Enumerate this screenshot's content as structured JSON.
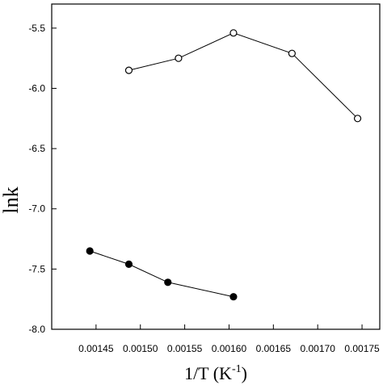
{
  "chart_data": {
    "type": "scatter",
    "title": "",
    "xlabel": "1/T (K-1)",
    "xlabel_parts": {
      "base": "1/T (K",
      "sup": "-1",
      "close": ")"
    },
    "ylabel": "lnk",
    "xlim": [
      0.0014,
      0.00177
    ],
    "ylim": [
      -8.0,
      -5.3
    ],
    "x_ticks": [
      0.00145,
      0.0015,
      0.00155,
      0.0016,
      0.00165,
      0.0017,
      0.00175
    ],
    "x_tick_labels": [
      "0.00145",
      "0.00150",
      "0.00155",
      "0.00160",
      "0.00165",
      "0.00170",
      "0.00175"
    ],
    "y_ticks": [
      -5.5,
      -6.0,
      -6.5,
      -7.0,
      -7.5,
      -8.0
    ],
    "y_tick_labels": [
      "-5.5",
      "-6.0",
      "-6.5",
      "-7.0",
      "-7.5",
      "-8.0"
    ],
    "grid": false,
    "legend": "none",
    "series": [
      {
        "marker": "open-circle",
        "connected": true,
        "x": [
          0.001487,
          0.001543,
          0.001605,
          0.001671,
          0.001745
        ],
        "y": [
          -5.85,
          -5.75,
          -5.54,
          -5.71,
          -6.25
        ]
      },
      {
        "marker": "filled-circle",
        "connected": true,
        "x": [
          0.001443,
          0.001487,
          0.001531,
          0.001605
        ],
        "y": [
          -7.35,
          -7.46,
          -7.61,
          -7.73
        ]
      }
    ],
    "colors": {
      "line": "#000000",
      "marker_edge": "#000000",
      "open_fill": "#ffffff",
      "filled_fill": "#000000"
    }
  }
}
